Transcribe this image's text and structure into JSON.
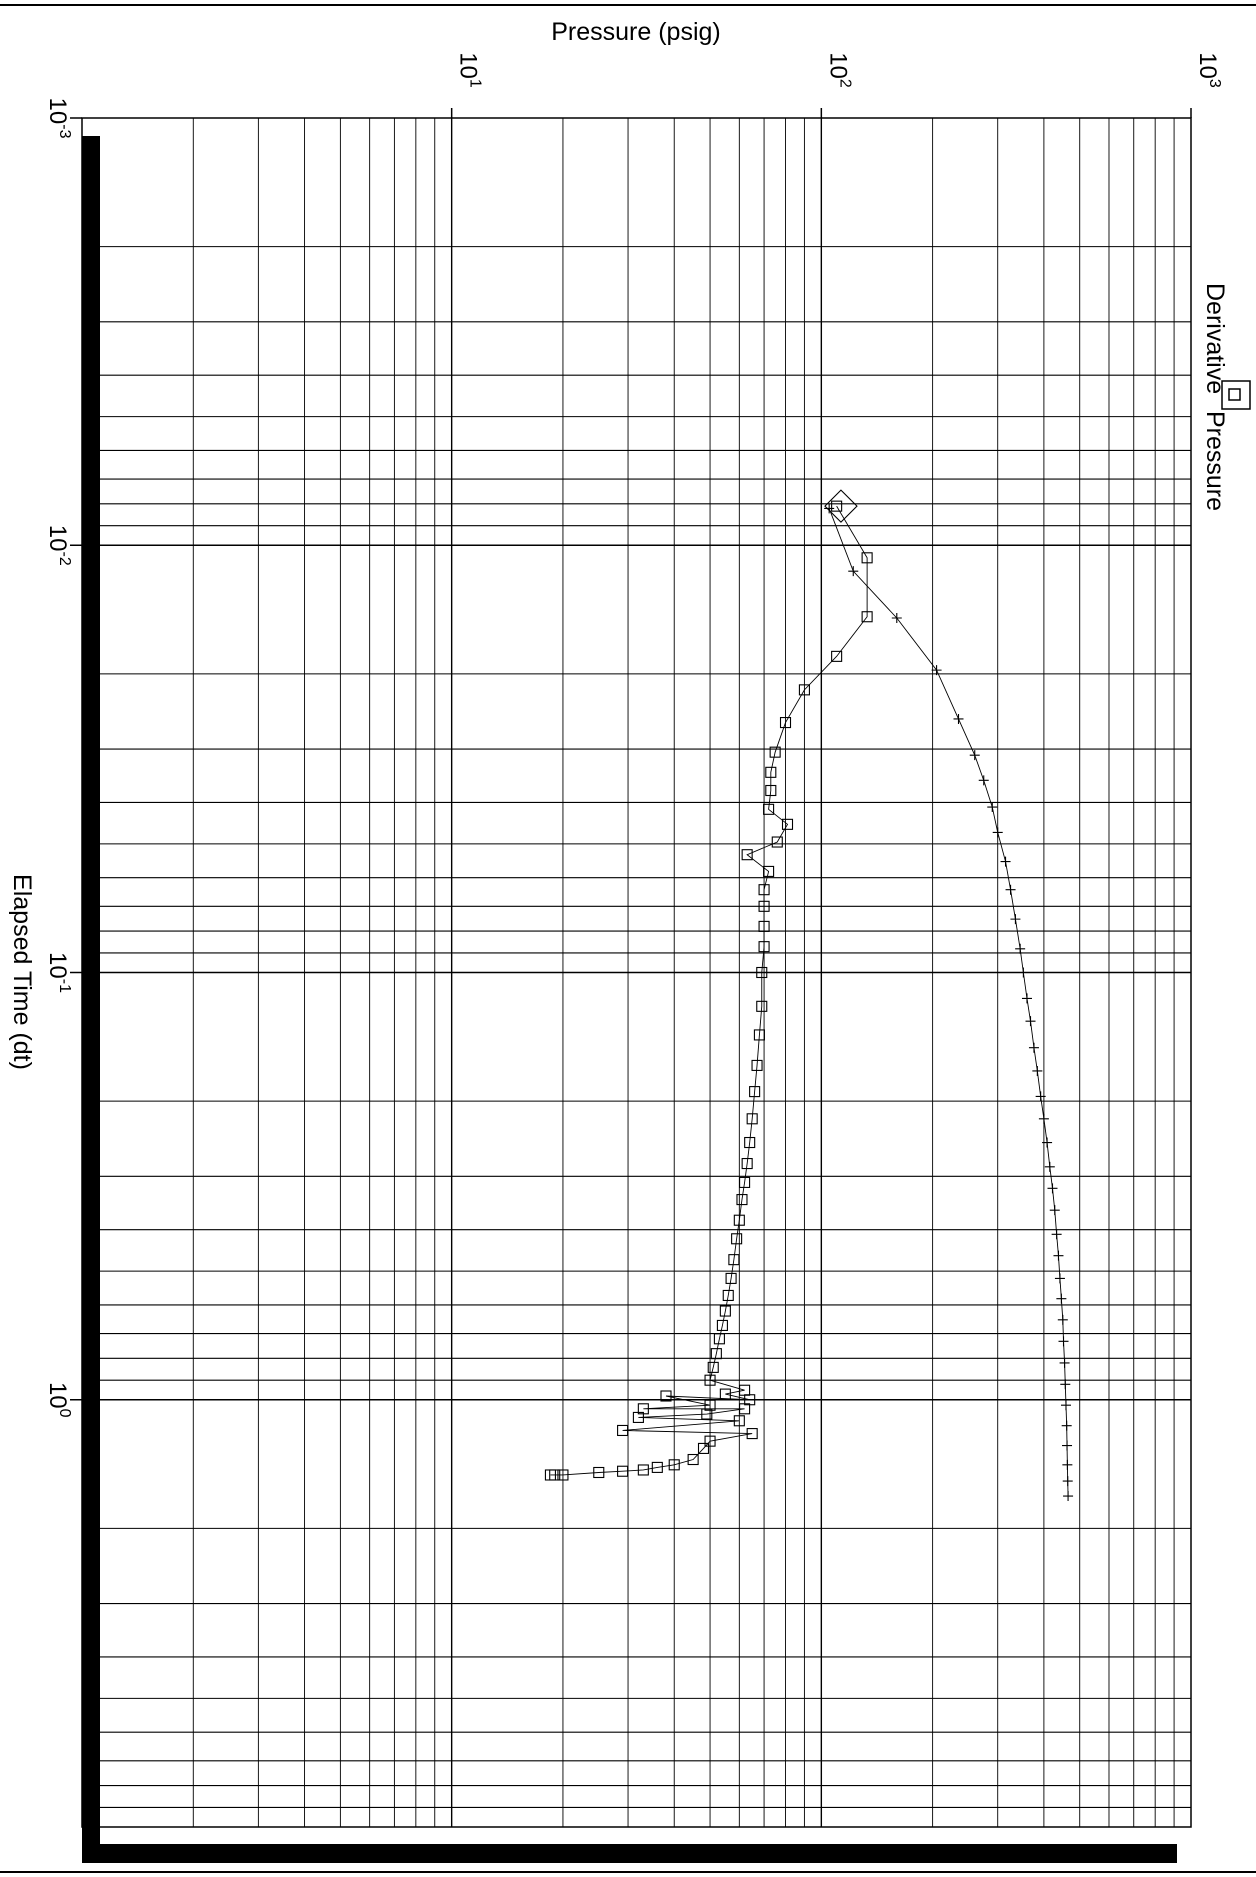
{
  "chart_data": {
    "type": "scatter",
    "x_axis": {
      "label": "Pressure (psig)",
      "scale": "log",
      "range": [
        1,
        1000
      ],
      "ticks": [
        {
          "value": 10,
          "base": "10",
          "exp": "1"
        },
        {
          "value": 100,
          "base": "10",
          "exp": "2"
        },
        {
          "value": 1000,
          "base": "10",
          "exp": "3"
        }
      ]
    },
    "y_axis": {
      "label": "Elapsed Time (dt)",
      "scale": "log",
      "range": [
        0.001,
        10
      ],
      "ticks": [
        {
          "value": 0.001,
          "base": "10",
          "exp": "-3"
        },
        {
          "value": 0.01,
          "base": "10",
          "exp": "-2"
        },
        {
          "value": 0.1,
          "base": "10",
          "exp": "-1"
        },
        {
          "value": 1,
          "base": "10",
          "exp": "0"
        }
      ]
    },
    "grid": true,
    "legend": {
      "placement": "top-right (rotated)",
      "entries": [
        {
          "symbol": "square",
          "label": "Derivative"
        },
        {
          "symbol": "plus",
          "label": "Pressure"
        }
      ]
    },
    "annotation": {
      "marker": "diamond",
      "x": 113,
      "y": 0.0081
    },
    "series": [
      {
        "name": "Pressure",
        "marker": "plus",
        "points": [
          [
            105,
            0.0082
          ],
          [
            122,
            0.0115
          ],
          [
            160,
            0.0148
          ],
          [
            205,
            0.0196
          ],
          [
            235,
            0.0255
          ],
          [
            260,
            0.031
          ],
          [
            275,
            0.0355
          ],
          [
            290,
            0.041
          ],
          [
            300,
            0.047
          ],
          [
            315,
            0.055
          ],
          [
            325,
            0.064
          ],
          [
            335,
            0.075
          ],
          [
            345,
            0.088
          ],
          [
            352,
            0.1
          ],
          [
            360,
            0.115
          ],
          [
            368,
            0.13
          ],
          [
            376,
            0.15
          ],
          [
            384,
            0.17
          ],
          [
            392,
            0.195
          ],
          [
            400,
            0.22
          ],
          [
            408,
            0.25
          ],
          [
            415,
            0.285
          ],
          [
            422,
            0.32
          ],
          [
            428,
            0.36
          ],
          [
            433,
            0.41
          ],
          [
            438,
            0.46
          ],
          [
            442,
            0.52
          ],
          [
            446,
            0.58
          ],
          [
            450,
            0.65
          ],
          [
            452,
            0.73
          ],
          [
            455,
            0.82
          ],
          [
            457,
            0.92
          ],
          [
            459,
            1.03
          ],
          [
            461,
            1.15
          ],
          [
            462,
            1.28
          ],
          [
            463,
            1.42
          ],
          [
            464,
            1.55
          ],
          [
            465,
            1.68
          ]
        ]
      },
      {
        "name": "Derivative",
        "marker": "square",
        "points": [
          [
            110,
            0.0081
          ],
          [
            133,
            0.0107
          ],
          [
            133,
            0.0147
          ],
          [
            110,
            0.0182
          ],
          [
            90,
            0.0218
          ],
          [
            80,
            0.026
          ],
          [
            75,
            0.0305
          ],
          [
            73,
            0.034
          ],
          [
            73,
            0.0375
          ],
          [
            72,
            0.0415
          ],
          [
            81,
            0.045
          ],
          [
            76,
            0.0495
          ],
          [
            63,
            0.053
          ],
          [
            72,
            0.058
          ],
          [
            70,
            0.064
          ],
          [
            70,
            0.07
          ],
          [
            70,
            0.078
          ],
          [
            70,
            0.087
          ],
          [
            69,
            0.1
          ],
          [
            69,
            0.12
          ],
          [
            68,
            0.14
          ],
          [
            67,
            0.165
          ],
          [
            66,
            0.19
          ],
          [
            65,
            0.22
          ],
          [
            64,
            0.25
          ],
          [
            63,
            0.28
          ],
          [
            62,
            0.31
          ],
          [
            61,
            0.34
          ],
          [
            60,
            0.38
          ],
          [
            59,
            0.42
          ],
          [
            58,
            0.47
          ],
          [
            57,
            0.52
          ],
          [
            56,
            0.57
          ],
          [
            55,
            0.62
          ],
          [
            54,
            0.67
          ],
          [
            53,
            0.72
          ],
          [
            52,
            0.78
          ],
          [
            51,
            0.84
          ],
          [
            50,
            0.9
          ],
          [
            62,
            0.95
          ],
          [
            55,
            0.97
          ],
          [
            64,
            1.0
          ],
          [
            38,
            0.98
          ],
          [
            50,
            1.03
          ],
          [
            33,
            1.05
          ],
          [
            62,
            1.05
          ],
          [
            49,
            1.08
          ],
          [
            32,
            1.1
          ],
          [
            60,
            1.12
          ],
          [
            29,
            1.18
          ],
          [
            65,
            1.2
          ],
          [
            50,
            1.25
          ],
          [
            48,
            1.3
          ],
          [
            45,
            1.38
          ],
          [
            40,
            1.42
          ],
          [
            36,
            1.44
          ],
          [
            33,
            1.46
          ],
          [
            29,
            1.47
          ],
          [
            25,
            1.48
          ],
          [
            20,
            1.5
          ],
          [
            19,
            1.5
          ],
          [
            18.5,
            1.5
          ]
        ]
      }
    ]
  }
}
